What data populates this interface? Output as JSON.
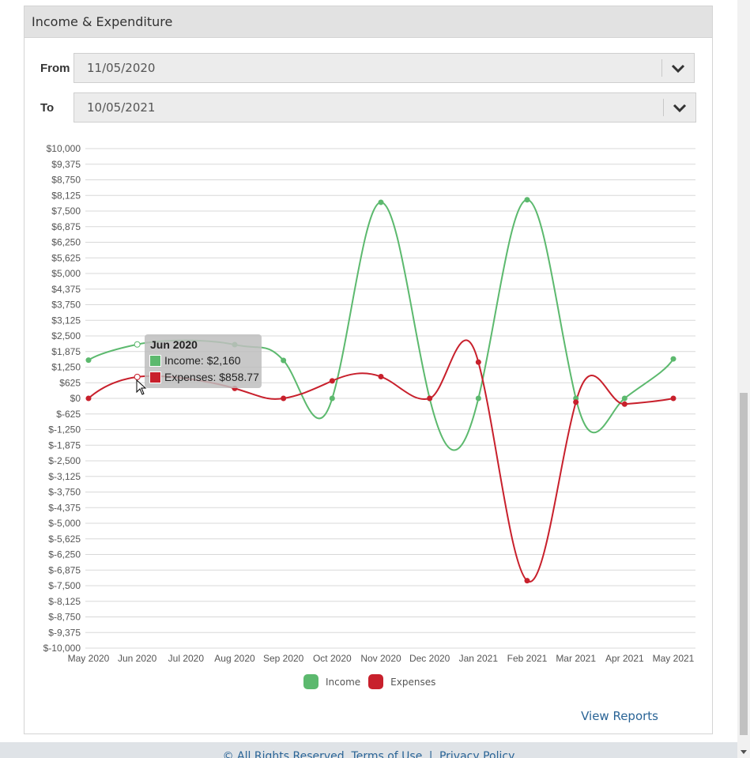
{
  "panel": {
    "title": "Income & Expenditure"
  },
  "filters": {
    "from_label": "From",
    "from_value": "11/05/2020",
    "to_label": "To",
    "to_value": "10/05/2021"
  },
  "tooltip": {
    "title": "Jun 2020",
    "income_text": "Income: $2,160",
    "expenses_text": "Expenses: $858.77"
  },
  "legend": {
    "income": "Income",
    "expenses": "Expenses"
  },
  "links": {
    "view_reports": "View Reports"
  },
  "footer": {
    "rights": "© All Rights Reserved.",
    "terms": "Terms of Use",
    "sep": "|",
    "privacy": "Privacy Policy"
  },
  "colors": {
    "income": "#5cb96e",
    "expenses": "#c8202c",
    "grid": "#d8d8d8"
  },
  "chart_data": {
    "type": "line",
    "categories": [
      "May 2020",
      "Jun 2020",
      "Jul 2020",
      "Aug 2020",
      "Sep 2020",
      "Oct 2020",
      "Nov 2020",
      "Dec 2020",
      "Jan 2021",
      "Feb 2021",
      "Mar 2021",
      "Apr 2021",
      "May 2021"
    ],
    "yticks": [
      "$10,000",
      "$9,375",
      "$8,750",
      "$8,125",
      "$7,500",
      "$6,875",
      "$6,250",
      "$5,625",
      "$5,000",
      "$4,375",
      "$3,750",
      "$3,125",
      "$2,500",
      "$1,875",
      "$1,250",
      "$625",
      "$0",
      "$-625",
      "$-1,250",
      "$-1,875",
      "$-2,500",
      "$-3,125",
      "$-3,750",
      "$-4,375",
      "$-5,000",
      "$-5,625",
      "$-6,250",
      "$-6,875",
      "$-7,500",
      "$-8,125",
      "$-8,750",
      "$-9,375",
      "$-10,000"
    ],
    "ylim": [
      -10000,
      10000
    ],
    "series": [
      {
        "name": "Income",
        "values": [
          1530,
          2160,
          null,
          2150,
          1520,
          0,
          7850,
          0,
          0,
          7950,
          0,
          0,
          1580
        ]
      },
      {
        "name": "Expenses",
        "values": [
          0,
          858.77,
          null,
          400,
          0,
          700,
          870,
          0,
          1450,
          -7300,
          -150,
          -230,
          0
        ]
      }
    ],
    "legend_position": "bottom",
    "grid": true
  }
}
